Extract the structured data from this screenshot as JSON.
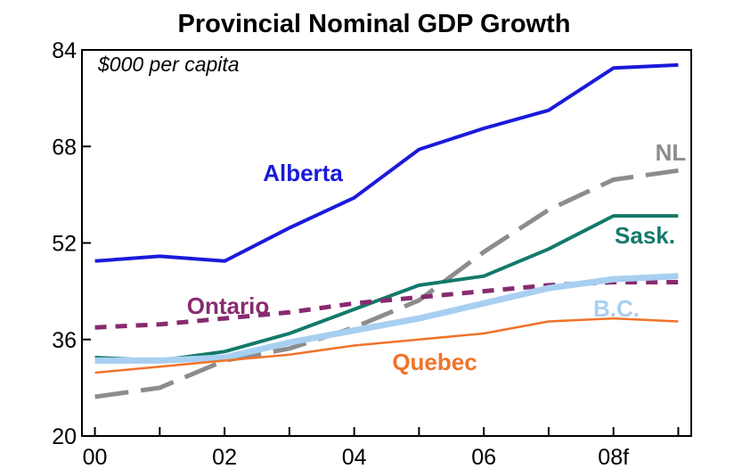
{
  "chart_data": {
    "type": "line",
    "title": "Provincial Nominal GDP Growth",
    "subtitle": "$000 per capita",
    "x": [
      2000,
      2001,
      2002,
      2003,
      2004,
      2005,
      2006,
      2007,
      2008,
      2009
    ],
    "xtick_labels": [
      "00",
      "02",
      "04",
      "06",
      "08f"
    ],
    "xtick_values": [
      2000,
      2002,
      2004,
      2006,
      2008
    ],
    "xlim": [
      1999.8,
      2009.2
    ],
    "ylim": [
      20,
      84
    ],
    "yticks": [
      20,
      36,
      52,
      68,
      84
    ],
    "grid": false,
    "series": [
      {
        "name": "Alberta",
        "color": "#1a1adb",
        "style": "solid",
        "width": 4,
        "values": [
          49.0,
          49.8,
          49.0,
          54.5,
          59.5,
          67.5,
          71.0,
          74.0,
          81.0,
          81.5
        ]
      },
      {
        "name": "NL",
        "color": "#8c8c8c",
        "style": "longdash",
        "width": 5,
        "values": [
          26.5,
          28.0,
          32.5,
          34.5,
          38.0,
          42.5,
          50.5,
          57.5,
          62.5,
          64.0
        ]
      },
      {
        "name": "Sask.",
        "color": "#137a6a",
        "style": "solid",
        "width": 4,
        "values": [
          33.0,
          32.5,
          34.0,
          37.0,
          41.0,
          45.0,
          46.5,
          51.0,
          56.5,
          56.5
        ]
      },
      {
        "name": "Ontario",
        "color": "#882a6e",
        "style": "shortdash",
        "width": 5,
        "values": [
          38.0,
          38.5,
          39.5,
          40.5,
          42.0,
          43.0,
          44.0,
          45.0,
          45.5,
          45.5
        ]
      },
      {
        "name": "B.C.",
        "color": "#a8cff2",
        "style": "solid",
        "width": 7,
        "values": [
          32.5,
          32.5,
          33.0,
          35.5,
          37.5,
          39.5,
          42.0,
          44.5,
          46.0,
          46.5
        ]
      },
      {
        "name": "Quebec",
        "color": "#f0732a",
        "style": "solid",
        "width": 2.5,
        "values": [
          30.5,
          31.5,
          32.5,
          33.5,
          35.0,
          36.0,
          37.0,
          39.0,
          39.5,
          39.0
        ]
      }
    ]
  }
}
